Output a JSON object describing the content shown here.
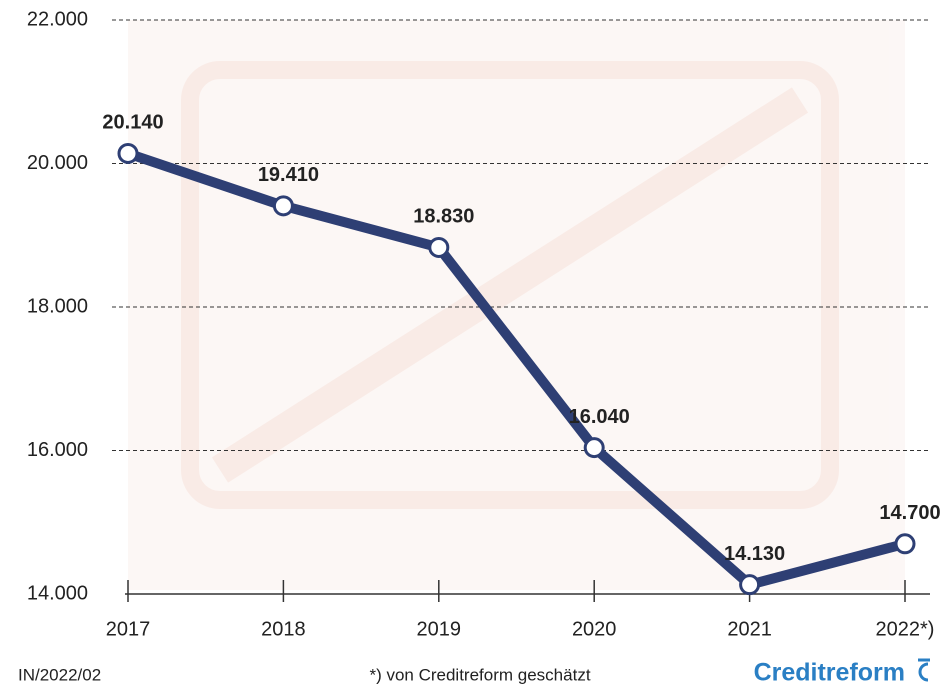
{
  "chart_data": {
    "type": "line",
    "categories": [
      "2017",
      "2018",
      "2019",
      "2020",
      "2021",
      "2022*)"
    ],
    "values": [
      20140,
      19410,
      18830,
      16040,
      14130,
      14700
    ],
    "value_labels": [
      "20.140",
      "19.410",
      "18.830",
      "16.040",
      "14.130",
      "14.700"
    ],
    "color": "#2e3f74",
    "ylim": [
      14000,
      22000
    ],
    "yticks": [
      {
        "value": 14000,
        "label": "14.000"
      },
      {
        "value": 16000,
        "label": "16.000"
      },
      {
        "value": 18000,
        "label": "18.000"
      },
      {
        "value": 20000,
        "label": "20.000"
      },
      {
        "value": 22000,
        "label": "22.000"
      }
    ],
    "grid": true,
    "source_note": "IN/2022/02",
    "footnote": "*) von Creditreform geschätzt",
    "logo": "Creditreform"
  }
}
